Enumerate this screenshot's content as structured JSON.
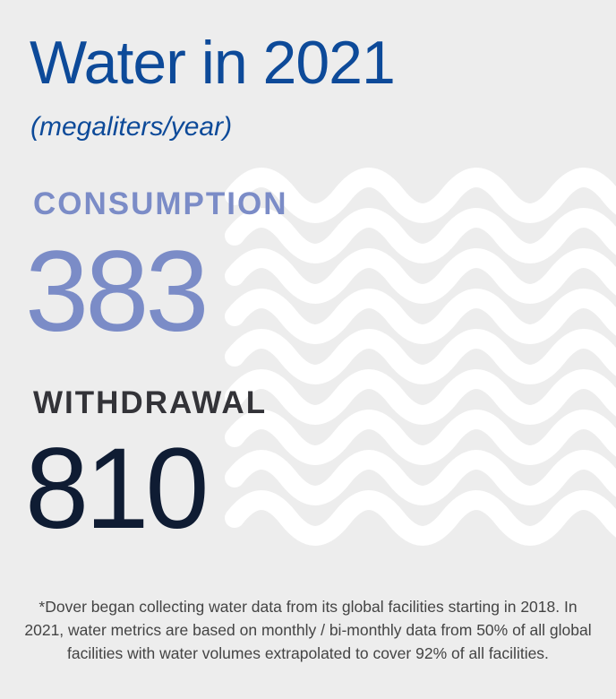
{
  "header": {
    "title": "Water in 2021",
    "unit": "(megaliters/year)"
  },
  "metrics": {
    "consumption": {
      "label": "CONSUMPTION",
      "value": "383"
    },
    "withdrawal": {
      "label": "WITHDRAWAL",
      "value": "810"
    }
  },
  "footnote": "*Dover began collecting water data from its global facilities starting in 2018. In 2021, water metrics are based on monthly / bi-monthly data from 50% of all global facilities with water volumes extrapolated to cover 92% of all facilities.",
  "decoration": {
    "icon": "wave-pattern-icon",
    "wave_color": "#ffffff"
  },
  "colors": {
    "background": "#ededed",
    "title": "#0d4a99",
    "consumption": "#7b8cc7",
    "withdrawal_label": "#333338",
    "withdrawal_value": "#0f1c33",
    "footnote": "#444444"
  }
}
